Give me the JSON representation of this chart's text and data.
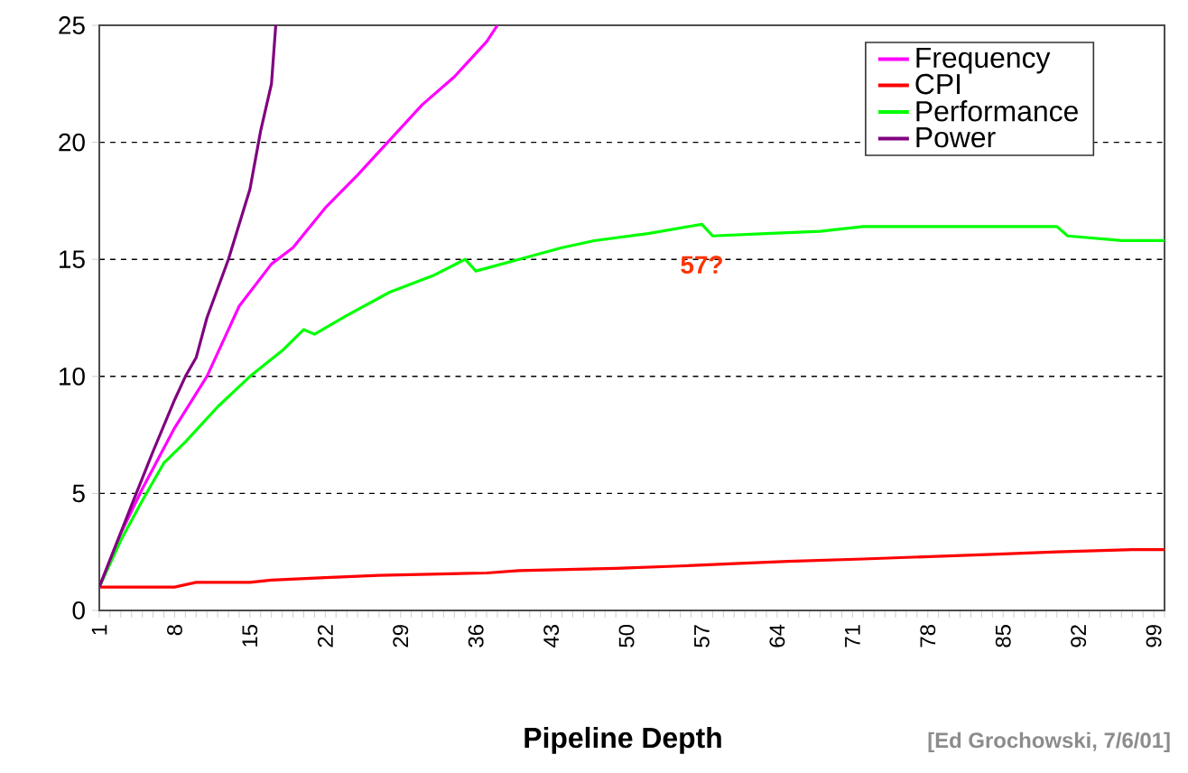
{
  "chart_data": {
    "type": "line",
    "xlabel": "Pipeline Depth",
    "xlim": [
      1,
      100
    ],
    "ylim": [
      0,
      25
    ],
    "xticks": [
      1,
      {
        "value": 2,
        "label": null
      },
      {
        "value": 3,
        "label": null
      },
      {
        "value": 4,
        "label": null
      },
      {
        "value": 5,
        "label": null
      },
      {
        "value": 6,
        "label": null
      },
      {
        "value": 7,
        "label": null
      },
      8,
      {
        "value": 9,
        "label": null
      },
      {
        "value": 10,
        "label": null
      },
      {
        "value": 11,
        "label": null
      },
      {
        "value": 12,
        "label": null
      },
      {
        "value": 13,
        "label": null
      },
      {
        "value": 14,
        "label": null
      },
      15,
      {
        "value": 16,
        "label": null
      },
      {
        "value": 17,
        "label": null
      },
      {
        "value": 18,
        "label": null
      },
      {
        "value": 19,
        "label": null
      },
      {
        "value": 20,
        "label": null
      },
      {
        "value": 21,
        "label": null
      },
      22,
      {
        "value": 23,
        "label": null
      },
      {
        "value": 24,
        "label": null
      },
      {
        "value": 25,
        "label": null
      },
      {
        "value": 26,
        "label": null
      },
      {
        "value": 27,
        "label": null
      },
      {
        "value": 28,
        "label": null
      },
      29,
      {
        "value": 30,
        "label": null
      },
      {
        "value": 31,
        "label": null
      },
      {
        "value": 32,
        "label": null
      },
      {
        "value": 33,
        "label": null
      },
      {
        "value": 34,
        "label": null
      },
      {
        "value": 35,
        "label": null
      },
      36,
      {
        "value": 37,
        "label": null
      },
      {
        "value": 38,
        "label": null
      },
      {
        "value": 39,
        "label": null
      },
      {
        "value": 40,
        "label": null
      },
      {
        "value": 41,
        "label": null
      },
      {
        "value": 42,
        "label": null
      },
      43,
      {
        "value": 44,
        "label": null
      },
      {
        "value": 45,
        "label": null
      },
      {
        "value": 46,
        "label": null
      },
      {
        "value": 47,
        "label": null
      },
      {
        "value": 48,
        "label": null
      },
      {
        "value": 49,
        "label": null
      },
      50,
      {
        "value": 51,
        "label": null
      },
      {
        "value": 52,
        "label": null
      },
      {
        "value": 53,
        "label": null
      },
      {
        "value": 54,
        "label": null
      },
      {
        "value": 55,
        "label": null
      },
      {
        "value": 56,
        "label": null
      },
      57,
      {
        "value": 58,
        "label": null
      },
      {
        "value": 59,
        "label": null
      },
      {
        "value": 60,
        "label": null
      },
      {
        "value": 61,
        "label": null
      },
      {
        "value": 62,
        "label": null
      },
      {
        "value": 63,
        "label": null
      },
      64,
      {
        "value": 65,
        "label": null
      },
      {
        "value": 66,
        "label": null
      },
      {
        "value": 67,
        "label": null
      },
      {
        "value": 68,
        "label": null
      },
      {
        "value": 69,
        "label": null
      },
      {
        "value": 70,
        "label": null
      },
      71,
      {
        "value": 72,
        "label": null
      },
      {
        "value": 73,
        "label": null
      },
      {
        "value": 74,
        "label": null
      },
      {
        "value": 75,
        "label": null
      },
      {
        "value": 76,
        "label": null
      },
      {
        "value": 77,
        "label": null
      },
      78,
      {
        "value": 79,
        "label": null
      },
      {
        "value": 80,
        "label": null
      },
      {
        "value": 81,
        "label": null
      },
      {
        "value": 82,
        "label": null
      },
      {
        "value": 83,
        "label": null
      },
      {
        "value": 84,
        "label": null
      },
      85,
      {
        "value": 86,
        "label": null
      },
      {
        "value": 87,
        "label": null
      },
      {
        "value": 88,
        "label": null
      },
      {
        "value": 89,
        "label": null
      },
      {
        "value": 90,
        "label": null
      },
      {
        "value": 91,
        "label": null
      },
      92,
      {
        "value": 93,
        "label": null
      },
      {
        "value": 94,
        "label": null
      },
      {
        "value": 95,
        "label": null
      },
      {
        "value": 96,
        "label": null
      },
      {
        "value": 97,
        "label": null
      },
      {
        "value": 98,
        "label": null
      },
      99,
      {
        "value": 100,
        "label": null
      }
    ],
    "yticks": [
      0,
      5,
      10,
      15,
      20,
      25
    ],
    "grid": "y",
    "legend": "top right",
    "series": [
      {
        "name": "Frequency",
        "color": "#ff00ff",
        "x": [
          1,
          3,
          5,
          8,
          11,
          14,
          17,
          19,
          22,
          25,
          28,
          31,
          34,
          37,
          38
        ],
        "values": [
          1,
          3.3,
          5.2,
          7.8,
          10,
          13,
          14.8,
          15.5,
          17.2,
          18.6,
          20.1,
          21.6,
          22.8,
          24.3,
          25
        ]
      },
      {
        "name": "CPI",
        "color": "#ff0000",
        "x": [
          1,
          8,
          10,
          15,
          17,
          22,
          27,
          37,
          40,
          49,
          55,
          60,
          65,
          72,
          78,
          84,
          90,
          97,
          100
        ],
        "values": [
          1,
          1,
          1.2,
          1.2,
          1.3,
          1.4,
          1.5,
          1.6,
          1.7,
          1.8,
          1.9,
          2,
          2.1,
          2.2,
          2.3,
          2.4,
          2.5,
          2.6,
          2.6
        ]
      },
      {
        "name": "Performance",
        "color": "#00ff00",
        "x": [
          1,
          3,
          5,
          7,
          9,
          12,
          15,
          18,
          20,
          21,
          24,
          28,
          32,
          35,
          36,
          40,
          44,
          47,
          52,
          57,
          58,
          63,
          68,
          72,
          80,
          90,
          91,
          96,
          100
        ],
        "values": [
          1,
          3,
          4.7,
          6.3,
          7.2,
          8.7,
          10,
          11.1,
          12,
          11.8,
          12.6,
          13.6,
          14.3,
          15,
          14.5,
          15,
          15.5,
          15.8,
          16.1,
          16.5,
          16,
          16.1,
          16.2,
          16.4,
          16.4,
          16.4,
          16,
          15.8,
          15.8
        ]
      },
      {
        "name": "Power",
        "color": "#800080",
        "x": [
          1,
          4,
          6,
          8,
          9,
          10,
          11,
          13,
          15,
          16,
          17,
          17.4
        ],
        "values": [
          1,
          4.5,
          6.8,
          9,
          10,
          10.8,
          12.5,
          15,
          18,
          20.5,
          22.5,
          25
        ]
      }
    ],
    "annotations": [
      {
        "text": "57?",
        "x": 57,
        "y": 16.5
      },
      "[Ed Grochowski, 7/6/01]"
    ]
  }
}
